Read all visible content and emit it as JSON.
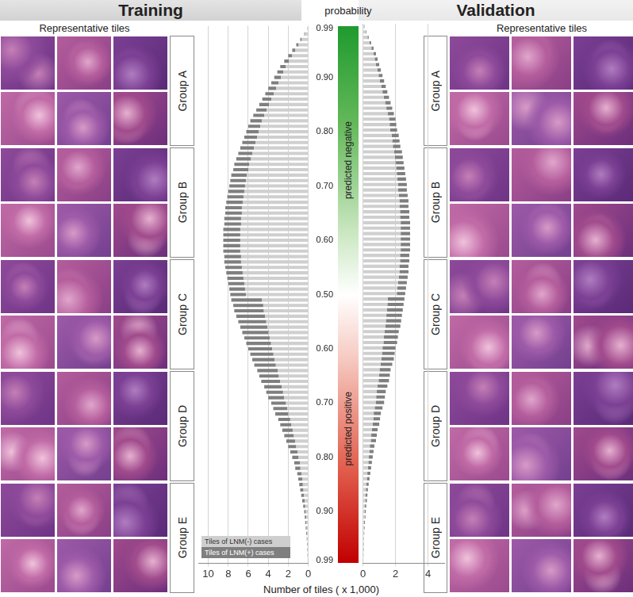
{
  "chart_data": [
    {
      "type": "bar",
      "orientation": "horizontal",
      "stacked": true,
      "title": "Training",
      "xlabel": "Number of tiles ( x 1,000)",
      "categories": [
        "0.99",
        null,
        null,
        null,
        null,
        null,
        null,
        null,
        null,
        "0.90",
        null,
        null,
        null,
        null,
        null,
        null,
        null,
        null,
        null,
        "0.80",
        null,
        null,
        null,
        null,
        null,
        null,
        null,
        null,
        null,
        "0.70",
        null,
        null,
        null,
        null,
        null,
        null,
        null,
        null,
        null,
        "0.60",
        null,
        null,
        null,
        null,
        null,
        null,
        null,
        null,
        null,
        "0.50",
        null,
        null,
        null,
        null,
        null,
        null,
        null,
        null,
        null,
        "0.60",
        null,
        null,
        null,
        null,
        null,
        null,
        null,
        null,
        null,
        "0.70",
        null,
        null,
        null,
        null,
        null,
        null,
        null,
        null,
        null,
        "0.80",
        null,
        null,
        null,
        null,
        null,
        null,
        null,
        null,
        null,
        "0.90",
        null,
        null,
        null,
        null,
        null,
        null,
        null,
        null,
        "0.99"
      ],
      "series": [
        {
          "name": "Tiles of LNM(-) cases",
          "color": "#cfcfcf",
          "values": [
            0.08,
            0.32,
            0.64,
            0.96,
            1.28,
            1.6,
            1.92,
            2.24,
            2.48,
            2.72,
            2.96,
            3.2,
            3.44,
            3.68,
            3.92,
            4.16,
            4.4,
            4.64,
            4.8,
            4.96,
            5.12,
            5.28,
            5.44,
            5.6,
            5.76,
            5.92,
            6,
            6.16,
            6.24,
            6.32,
            6.4,
            6.48,
            6.56,
            6.64,
            6.64,
            6.72,
            6.72,
            6.8,
            6.8,
            6.8,
            6.8,
            6.8,
            6.72,
            6.72,
            6.64,
            6.56,
            6.48,
            6.4,
            6.32,
            6.24,
            4.62,
            4.5,
            4.44,
            4.32,
            4.2,
            4.08,
            3.96,
            3.84,
            3.72,
            3.6,
            3.48,
            3.36,
            3.24,
            3.06,
            2.94,
            2.82,
            2.64,
            2.52,
            2.4,
            2.22,
            2.1,
            1.98,
            1.8,
            1.68,
            1.56,
            1.44,
            1.32,
            1.2,
            1.08,
            0.96,
            0.84,
            0.78,
            0.66,
            0.6,
            0.54,
            0.48,
            0.42,
            0.36,
            0.3,
            0.24,
            0.21,
            0.18,
            0.15,
            0.12,
            0.09,
            0.07,
            0.06,
            0.04,
            0.03
          ]
        },
        {
          "name": "Tiles of LNM(+) cases",
          "color": "#7f7f7f",
          "values": [
            0.02,
            0.08,
            0.16,
            0.24,
            0.32,
            0.4,
            0.48,
            0.56,
            0.62,
            0.68,
            0.74,
            0.8,
            0.86,
            0.92,
            0.98,
            1.04,
            1.1,
            1.16,
            1.2,
            1.24,
            1.28,
            1.32,
            1.36,
            1.4,
            1.44,
            1.48,
            1.5,
            1.54,
            1.56,
            1.58,
            1.6,
            1.62,
            1.64,
            1.66,
            1.66,
            1.68,
            1.68,
            1.7,
            1.7,
            1.7,
            1.7,
            1.7,
            1.68,
            1.68,
            1.66,
            1.64,
            1.62,
            1.6,
            1.58,
            1.56,
            3.08,
            3,
            2.96,
            2.88,
            2.8,
            2.72,
            2.64,
            2.56,
            2.48,
            2.4,
            2.32,
            2.24,
            2.16,
            2.04,
            1.96,
            1.88,
            1.76,
            1.68,
            1.6,
            1.48,
            1.4,
            1.32,
            1.2,
            1.12,
            1.04,
            0.96,
            0.88,
            0.8,
            0.72,
            0.64,
            0.56,
            0.52,
            0.44,
            0.4,
            0.36,
            0.32,
            0.28,
            0.24,
            0.2,
            0.16,
            0.14,
            0.12,
            0.1,
            0.08,
            0.06,
            0.05,
            0.04,
            0.03,
            0.02
          ]
        }
      ],
      "xlim": [
        11,
        0
      ],
      "xticks": [
        0,
        2,
        4,
        6,
        8,
        10
      ],
      "grid": true,
      "legend": "lower left"
    },
    {
      "type": "bar",
      "orientation": "horizontal",
      "stacked": true,
      "title": "Validation",
      "categories": [
        "0.99",
        null,
        null,
        null,
        null,
        null,
        null,
        null,
        null,
        "0.90",
        null,
        null,
        null,
        null,
        null,
        null,
        null,
        null,
        null,
        "0.80",
        null,
        null,
        null,
        null,
        null,
        null,
        null,
        null,
        null,
        "0.70",
        null,
        null,
        null,
        null,
        null,
        null,
        null,
        null,
        null,
        "0.60",
        null,
        null,
        null,
        null,
        null,
        null,
        null,
        null,
        null,
        "0.50",
        null,
        null,
        null,
        null,
        null,
        null,
        null,
        null,
        null,
        "0.60",
        null,
        null,
        null,
        null,
        null,
        null,
        null,
        null,
        null,
        "0.70",
        null,
        null,
        null,
        null,
        null,
        null,
        null,
        null,
        null,
        "0.80",
        null,
        null,
        null,
        null,
        null,
        null,
        null,
        null,
        null,
        "0.90",
        null,
        null,
        null,
        null,
        null,
        null,
        null,
        null,
        "0.99"
      ],
      "series": [
        {
          "name": "Tiles of LNM(-) cases",
          "color": "#cfcfcf",
          "values": [
            0.08,
            0.16,
            0.28,
            0.4,
            0.52,
            0.64,
            0.72,
            0.8,
            0.88,
            0.96,
            1.04,
            1.12,
            1.2,
            1.28,
            1.36,
            1.44,
            1.52,
            1.6,
            1.64,
            1.68,
            1.76,
            1.8,
            1.84,
            1.92,
            1.96,
            2,
            2.04,
            2.08,
            2.12,
            2.16,
            2.16,
            2.2,
            2.24,
            2.24,
            2.28,
            2.28,
            2.32,
            2.32,
            2.32,
            2.32,
            2.32,
            2.32,
            2.28,
            2.28,
            2.24,
            2.24,
            2.2,
            2.16,
            2.12,
            2.08,
            1.53,
            1.5,
            1.47,
            1.44,
            1.41,
            1.38,
            1.32,
            1.29,
            1.26,
            1.2,
            1.17,
            1.14,
            1.08,
            1.02,
            0.99,
            0.96,
            0.9,
            0.84,
            0.81,
            0.78,
            0.72,
            0.66,
            0.63,
            0.6,
            0.54,
            0.51,
            0.48,
            0.42,
            0.39,
            0.36,
            0.33,
            0.3,
            0.27,
            0.24,
            0.21,
            0.18,
            0.16,
            0.14,
            0.12,
            0.1,
            0.09,
            0.07,
            0.06,
            0.05,
            0.04,
            0.03,
            0.02,
            0.02,
            0.01
          ]
        },
        {
          "name": "Tiles of LNM(+) cases",
          "color": "#7f7f7f",
          "values": [
            0.02,
            0.04,
            0.07,
            0.1,
            0.13,
            0.16,
            0.18,
            0.2,
            0.22,
            0.24,
            0.26,
            0.28,
            0.3,
            0.32,
            0.34,
            0.36,
            0.38,
            0.4,
            0.41,
            0.42,
            0.44,
            0.45,
            0.46,
            0.48,
            0.49,
            0.5,
            0.51,
            0.52,
            0.53,
            0.54,
            0.54,
            0.55,
            0.56,
            0.56,
            0.57,
            0.57,
            0.58,
            0.58,
            0.58,
            0.58,
            0.58,
            0.58,
            0.57,
            0.57,
            0.56,
            0.56,
            0.55,
            0.54,
            0.53,
            0.52,
            1.02,
            1,
            0.98,
            0.96,
            0.94,
            0.92,
            0.88,
            0.86,
            0.84,
            0.8,
            0.78,
            0.76,
            0.72,
            0.68,
            0.66,
            0.64,
            0.6,
            0.56,
            0.54,
            0.52,
            0.48,
            0.44,
            0.42,
            0.4,
            0.36,
            0.34,
            0.32,
            0.28,
            0.26,
            0.24,
            0.22,
            0.2,
            0.18,
            0.16,
            0.14,
            0.12,
            0.11,
            0.1,
            0.08,
            0.07,
            0.06,
            0.05,
            0.04,
            0.03,
            0.02,
            0.02,
            0.02,
            0.01,
            0.01
          ]
        }
      ],
      "xlim": [
        0,
        5
      ],
      "xticks": [
        0,
        2,
        4
      ],
      "grid": true,
      "tick_labels": "x"
    }
  ],
  "panels": [
    {
      "subtitle": "Representative tiles",
      "groups": [
        "Group A",
        "Group B",
        "Group C",
        "Group D",
        "Group E"
      ]
    },
    {
      "subtitle": "Representative tiles",
      "groups": [
        "Group A",
        "Group B",
        "Group C",
        "Group D",
        "Group E"
      ]
    }
  ],
  "colorbar": {
    "title": "probability",
    "labels": [
      "predicted negative",
      "predicted positive"
    ]
  }
}
